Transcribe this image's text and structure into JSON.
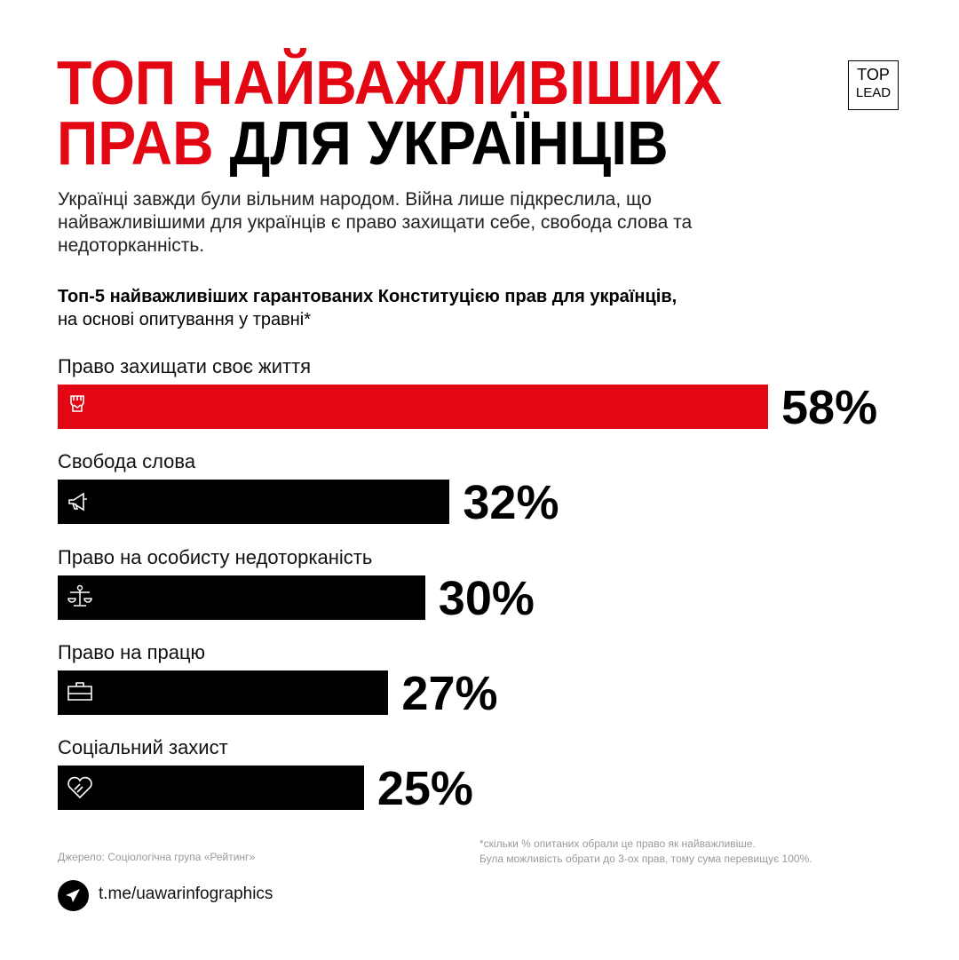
{
  "header": {
    "title_line1": "ТОП НАЙВАЖЛИВІШИХ",
    "title_line2_red": "ПРАВ",
    "title_line2_black": "ДЛЯ УКРАЇНЦІВ",
    "logo_top": "TOP",
    "logo_bottom": "LEAD"
  },
  "intro": "Українці завжди були вільним народом. Війна лише підкреслила, що найважливішими для українців є право захищати себе, свобода слова та недоторканність.",
  "subtitle_bold": "Топ-5 найважливіших гарантованих Конституцією прав для українців,",
  "subtitle_regular": "на основі опитування у травні*",
  "chart_data": {
    "type": "bar",
    "orientation": "horizontal",
    "title": "Топ-5 найважливіших гарантованих Конституцією прав для українців, на основі опитування у травні*",
    "categories": [
      "Право захищати своє життя",
      "Свобода слова",
      "Право на особисту недоторканість",
      "Право на працю",
      "Соціальний захист"
    ],
    "values": [
      58,
      32,
      30,
      27,
      25
    ],
    "value_labels": [
      "58%",
      "32%",
      "30%",
      "27%",
      "25%"
    ],
    "icons": [
      "fist-icon",
      "megaphone-icon",
      "scales-icon",
      "briefcase-icon",
      "heart-handshake-icon"
    ],
    "colors": [
      "#e30613",
      "#000000",
      "#000000",
      "#000000",
      "#000000"
    ],
    "unit": "%"
  },
  "footer": {
    "source": "Джерело: Соціологічна група «Рейтинг»",
    "note_line1": "*скільки % опитаних обрали це право як найважливіше.",
    "note_line2": "Була можливість обрати до 3-ох прав, тому сума перевищує 100%.",
    "telegram": "t.me/uawarinfographics"
  }
}
